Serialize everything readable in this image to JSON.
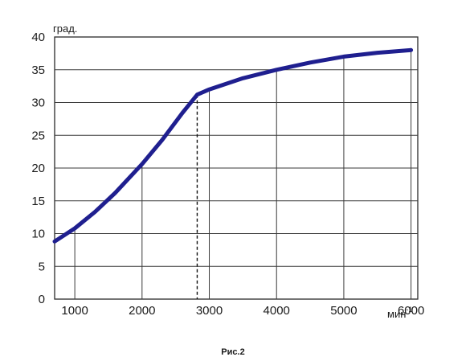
{
  "chart_data": {
    "type": "line",
    "title": "",
    "caption": "Рис.2",
    "ylabel": "град.",
    "xlabel": "мин⁻¹",
    "xlabel_base": "мин",
    "xlabel_exp": "-1",
    "xlim": [
      700,
      6100
    ],
    "ylim": [
      0,
      40
    ],
    "grid": true,
    "y_ticks": [
      0,
      5,
      10,
      15,
      20,
      25,
      30,
      35,
      40
    ],
    "x_ticks": [
      1000,
      2000,
      3000,
      4000,
      5000,
      6000
    ],
    "series": [
      {
        "color": "#1f1f8f",
        "points": [
          {
            "x": 700,
            "y": 8.8
          },
          {
            "x": 1000,
            "y": 10.8
          },
          {
            "x": 1300,
            "y": 13.3
          },
          {
            "x": 1600,
            "y": 16.2
          },
          {
            "x": 2000,
            "y": 20.6
          },
          {
            "x": 2300,
            "y": 24.3
          },
          {
            "x": 2600,
            "y": 28.4
          },
          {
            "x": 2820,
            "y": 31.2
          },
          {
            "x": 3000,
            "y": 32.0
          },
          {
            "x": 3500,
            "y": 33.7
          },
          {
            "x": 4000,
            "y": 35.0
          },
          {
            "x": 4500,
            "y": 36.1
          },
          {
            "x": 5000,
            "y": 37.0
          },
          {
            "x": 5500,
            "y": 37.6
          },
          {
            "x": 6000,
            "y": 38.0
          }
        ]
      }
    ],
    "marker_line": {
      "x": 2820,
      "y": 31.2,
      "style": "dashed"
    },
    "grid_x": [
      1000,
      2000,
      3000,
      4000,
      5000,
      6000
    ]
  }
}
